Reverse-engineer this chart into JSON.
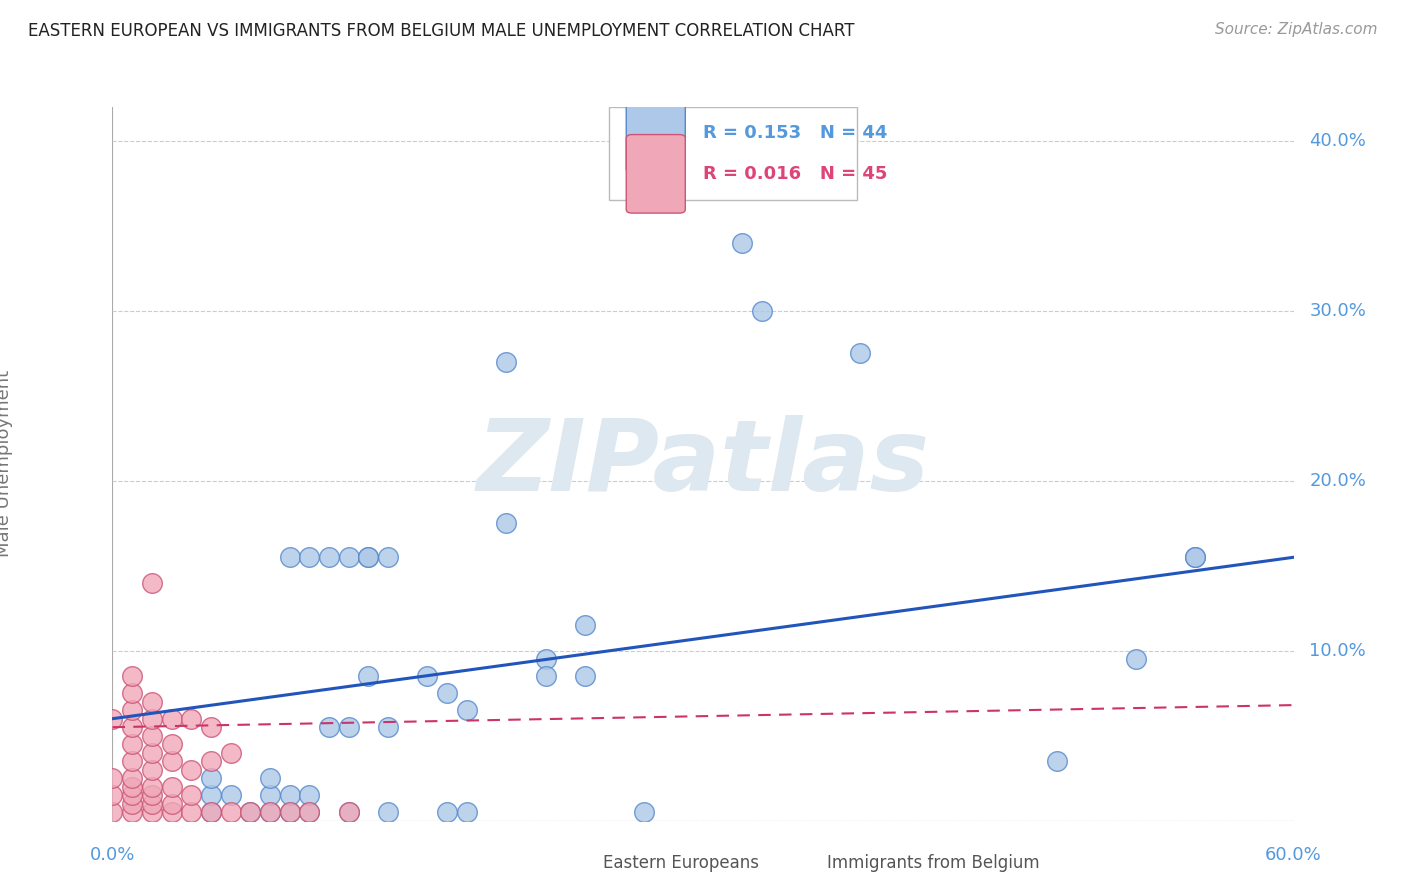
{
  "title": "EASTERN EUROPEAN VS IMMIGRANTS FROM BELGIUM MALE UNEMPLOYMENT CORRELATION CHART",
  "source": "Source: ZipAtlas.com",
  "ylabel": "Male Unemployment",
  "series1_label": "Eastern Europeans",
  "series2_label": "Immigrants from Belgium",
  "series1_R": "0.153",
  "series1_N": "44",
  "series2_R": "0.016",
  "series2_N": "45",
  "series1_color": "#adc8e8",
  "series2_color": "#f0a8b8",
  "series1_edge_color": "#5588cc",
  "series2_edge_color": "#cc5577",
  "trendline1_color": "#2255bb",
  "trendline2_color": "#cc3366",
  "bg_color": "#ffffff",
  "grid_color": "#cccccc",
  "axis_label_color": "#5599dd",
  "title_color": "#222222",
  "watermark_color": "#dde8f0",
  "xlim": [
    0.0,
    0.6
  ],
  "ylim": [
    0.0,
    0.42
  ],
  "yticks": [
    0.0,
    0.1,
    0.2,
    0.3,
    0.4
  ],
  "ytick_labels": [
    "",
    "10.0%",
    "20.0%",
    "30.0%",
    "40.0%"
  ],
  "series1_x": [
    0.05,
    0.05,
    0.05,
    0.06,
    0.07,
    0.08,
    0.08,
    0.08,
    0.09,
    0.09,
    0.09,
    0.1,
    0.1,
    0.1,
    0.11,
    0.11,
    0.12,
    0.12,
    0.12,
    0.13,
    0.13,
    0.13,
    0.14,
    0.14,
    0.14,
    0.16,
    0.17,
    0.17,
    0.18,
    0.18,
    0.2,
    0.2,
    0.22,
    0.22,
    0.24,
    0.24,
    0.27,
    0.32,
    0.33,
    0.38,
    0.48,
    0.52,
    0.55,
    0.55
  ],
  "series1_y": [
    0.005,
    0.015,
    0.025,
    0.015,
    0.005,
    0.005,
    0.015,
    0.025,
    0.005,
    0.015,
    0.155,
    0.005,
    0.015,
    0.155,
    0.055,
    0.155,
    0.005,
    0.055,
    0.155,
    0.085,
    0.155,
    0.155,
    0.005,
    0.055,
    0.155,
    0.085,
    0.005,
    0.075,
    0.005,
    0.065,
    0.175,
    0.27,
    0.095,
    0.085,
    0.115,
    0.085,
    0.005,
    0.34,
    0.3,
    0.275,
    0.035,
    0.095,
    0.155,
    0.155
  ],
  "series2_x": [
    0.0,
    0.0,
    0.0,
    0.0,
    0.01,
    0.01,
    0.01,
    0.01,
    0.01,
    0.01,
    0.01,
    0.01,
    0.01,
    0.01,
    0.01,
    0.02,
    0.02,
    0.02,
    0.02,
    0.02,
    0.02,
    0.02,
    0.02,
    0.02,
    0.02,
    0.03,
    0.03,
    0.03,
    0.03,
    0.03,
    0.03,
    0.04,
    0.04,
    0.04,
    0.04,
    0.05,
    0.05,
    0.05,
    0.06,
    0.06,
    0.07,
    0.08,
    0.09,
    0.1,
    0.12
  ],
  "series2_y": [
    0.005,
    0.015,
    0.025,
    0.06,
    0.005,
    0.01,
    0.015,
    0.02,
    0.025,
    0.035,
    0.045,
    0.055,
    0.065,
    0.075,
    0.085,
    0.005,
    0.01,
    0.015,
    0.02,
    0.03,
    0.04,
    0.05,
    0.06,
    0.07,
    0.14,
    0.005,
    0.01,
    0.02,
    0.035,
    0.045,
    0.06,
    0.005,
    0.015,
    0.03,
    0.06,
    0.005,
    0.035,
    0.055,
    0.005,
    0.04,
    0.005,
    0.005,
    0.005,
    0.005,
    0.005
  ],
  "trendline1_x": [
    0.0,
    0.6
  ],
  "trendline1_y": [
    0.06,
    0.155
  ],
  "trendline2_x": [
    0.0,
    0.6
  ],
  "trendline2_y": [
    0.055,
    0.068
  ]
}
